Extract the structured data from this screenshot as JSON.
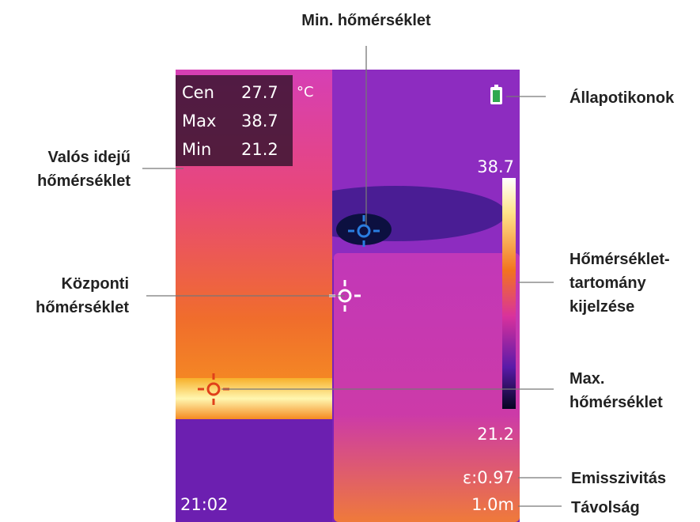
{
  "callouts": {
    "min_temp": [
      "Min. hőmérséklet"
    ],
    "status_icons": [
      "Állapotikonok"
    ],
    "realtime_temp": [
      "Valós idejű",
      "hőmérséklet"
    ],
    "range_display": [
      "Hőmérséklet-",
      "tartomány",
      "kijelzése"
    ],
    "center_temp": [
      "Központi",
      "hőmérséklet"
    ],
    "max_temp": [
      "Max.",
      "hőmérséklet"
    ],
    "emissivity": [
      "Emisszivitás"
    ],
    "distance": [
      "Távolság"
    ]
  },
  "screen": {
    "readings": [
      [
        "Cen",
        "27.7"
      ],
      [
        "Max",
        "38.7"
      ],
      [
        "Min",
        "21.2"
      ]
    ],
    "unit": "°C",
    "scale_max": "38.7",
    "scale_min": "21.2",
    "emissivity": "ε:0.97",
    "time": "21:02",
    "distance": "1.0m"
  }
}
